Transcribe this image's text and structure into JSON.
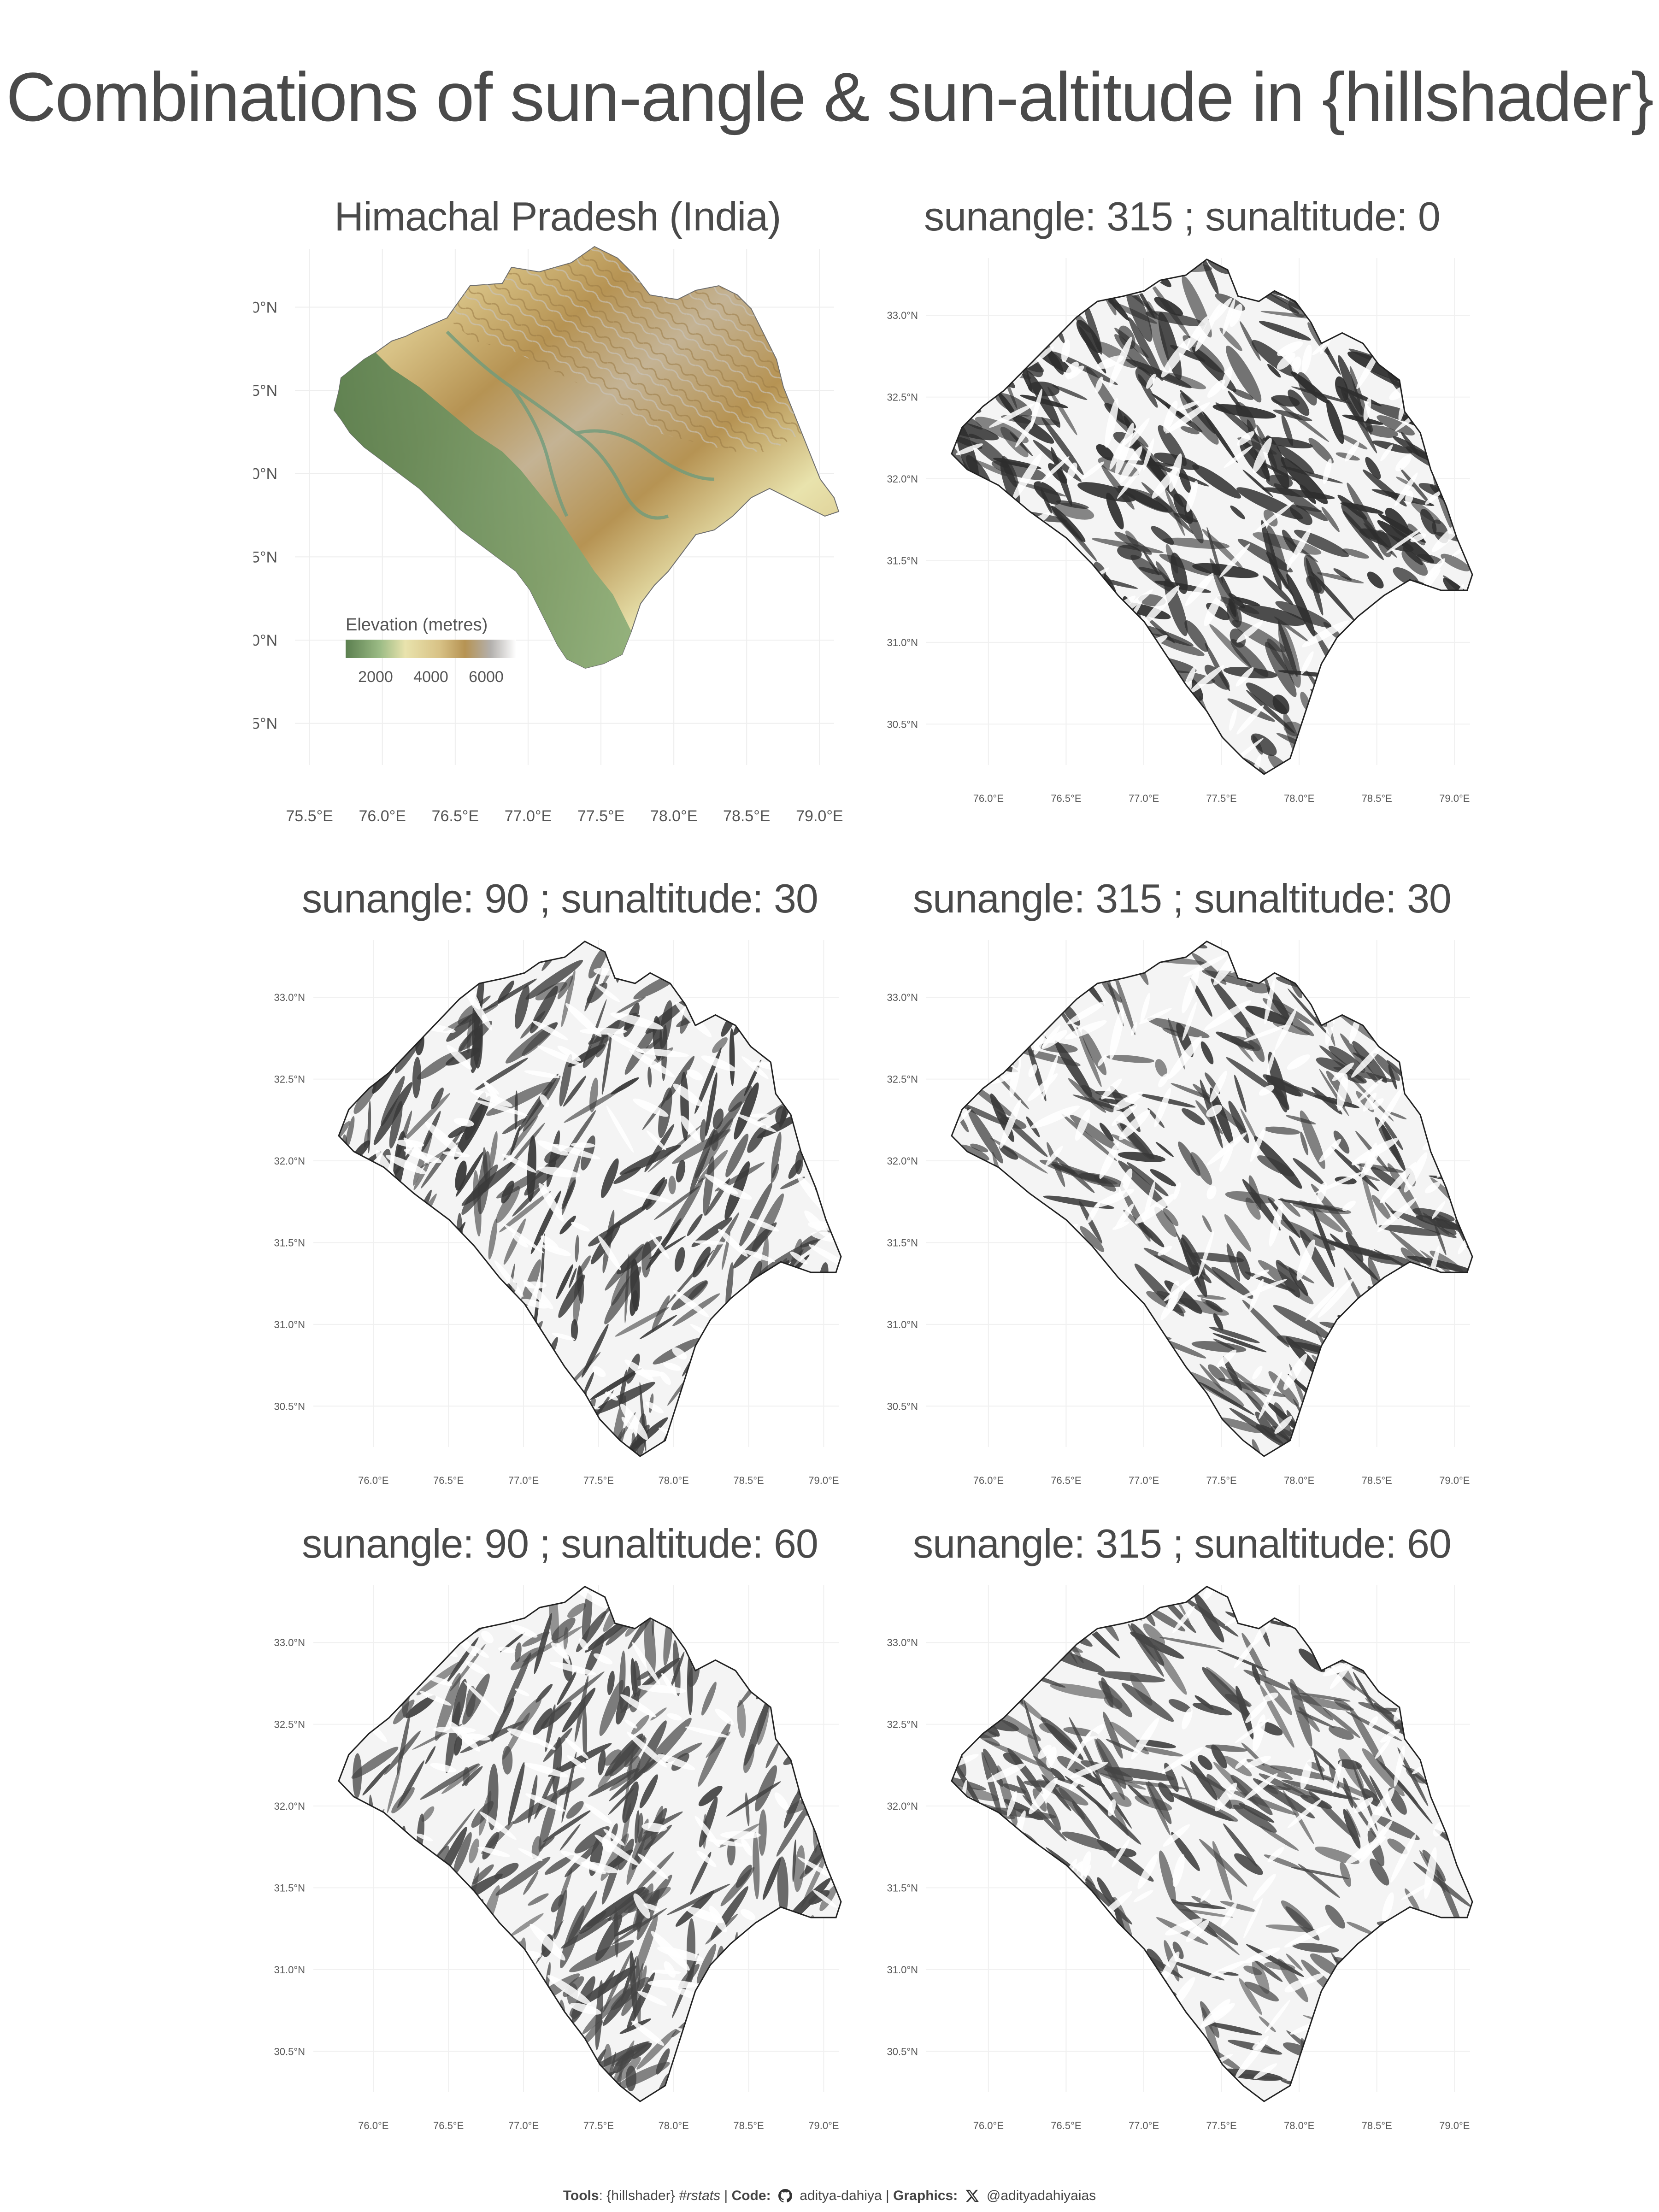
{
  "title": "Combinations of sun-angle & sun-altitude in {hillshader}",
  "panels": [
    {
      "title": "Himachal Pradesh (India)",
      "type": "elevation"
    },
    {
      "title": "sunangle: 315  ; sunaltitude: 0",
      "sunangle": 315,
      "sunaltitude": 0
    },
    {
      "title": "sunangle: 90  ; sunaltitude: 30",
      "sunangle": 90,
      "sunaltitude": 30
    },
    {
      "title": "sunangle: 315  ; sunaltitude: 30",
      "sunangle": 315,
      "sunaltitude": 30
    },
    {
      "title": "sunangle: 90  ; sunaltitude: 60",
      "sunangle": 90,
      "sunaltitude": 60
    },
    {
      "title": "sunangle: 315  ; sunaltitude: 60",
      "sunangle": 315,
      "sunaltitude": 60
    }
  ],
  "map_axes": {
    "lat_ticks": [
      "33.0°N",
      "32.5°N",
      "32.0°N",
      "31.5°N",
      "31.0°N",
      "30.5°N"
    ],
    "lon_ticks_first": [
      "75.5°E",
      "76.0°E",
      "76.5°E",
      "77.0°E",
      "77.5°E",
      "78.0°E",
      "78.5°E",
      "79.0°E"
    ],
    "lon_ticks": [
      "76.0°E",
      "76.5°E",
      "77.0°E",
      "77.5°E",
      "78.0°E",
      "78.5°E",
      "79.0°E"
    ],
    "lat_range": [
      30.25,
      33.35
    ],
    "lon_range_first": [
      75.4,
      79.1
    ],
    "lon_range": [
      75.6,
      79.1
    ]
  },
  "legend": {
    "title": "Elevation (metres)",
    "labels": [
      "2000",
      "4000",
      "6000"
    ],
    "colors": [
      "#5b7f4f",
      "#9bbb85",
      "#e9e3ad",
      "#d8c286",
      "#b69353",
      "#b3b0ad",
      "#ffffff"
    ]
  },
  "footer": {
    "tools_label": "Tools",
    "tools_text": ": {hillshader}",
    "rstats": "#rstats",
    "code_label": "Code:",
    "code_handle": "aditya-dahiya",
    "graphics_label": "Graphics:",
    "graphics_handle": "@adityadahiyaias"
  }
}
